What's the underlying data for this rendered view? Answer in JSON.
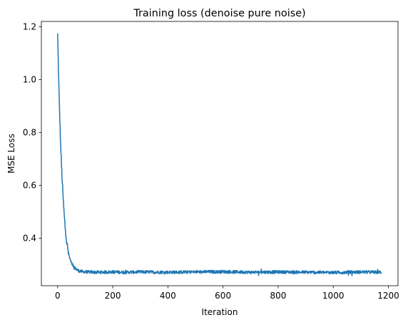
{
  "chart_data": {
    "type": "line",
    "title": "Training loss (denoise pure noise)",
    "xlabel": "Iteration",
    "ylabel": "MSE Loss",
    "xlim": [
      -59,
      1235
    ],
    "ylim": [
      0.22,
      1.22
    ],
    "xticks": [
      0,
      200,
      400,
      600,
      800,
      1000,
      1200
    ],
    "yticks": [
      0.4,
      0.6,
      0.8,
      1.0,
      1.2
    ],
    "xtick_labels": [
      "0",
      "200",
      "400",
      "600",
      "800",
      "1000",
      "1200"
    ],
    "ytick_labels": [
      "0.4",
      "0.6",
      "0.8",
      "1.0",
      "1.2"
    ],
    "grid": false,
    "line_color": "#1f77b4",
    "series": [
      {
        "iterations": 1175,
        "x_sampled": [
          0,
          5,
          10,
          15,
          20,
          25,
          30,
          35,
          40,
          45,
          50,
          60,
          70,
          80,
          100,
          150,
          200,
          250,
          300,
          400,
          500,
          600,
          700,
          800,
          900,
          1000,
          1100,
          1174
        ],
        "y_sampled": [
          1.17,
          0.95,
          0.78,
          0.65,
          0.55,
          0.47,
          0.41,
          0.37,
          0.34,
          0.32,
          0.305,
          0.29,
          0.28,
          0.275,
          0.272,
          0.271,
          0.272,
          0.271,
          0.272,
          0.271,
          0.272,
          0.273,
          0.271,
          0.272,
          0.271,
          0.27,
          0.272,
          0.271
        ],
        "noise_amplitude": 0.006
      }
    ]
  }
}
